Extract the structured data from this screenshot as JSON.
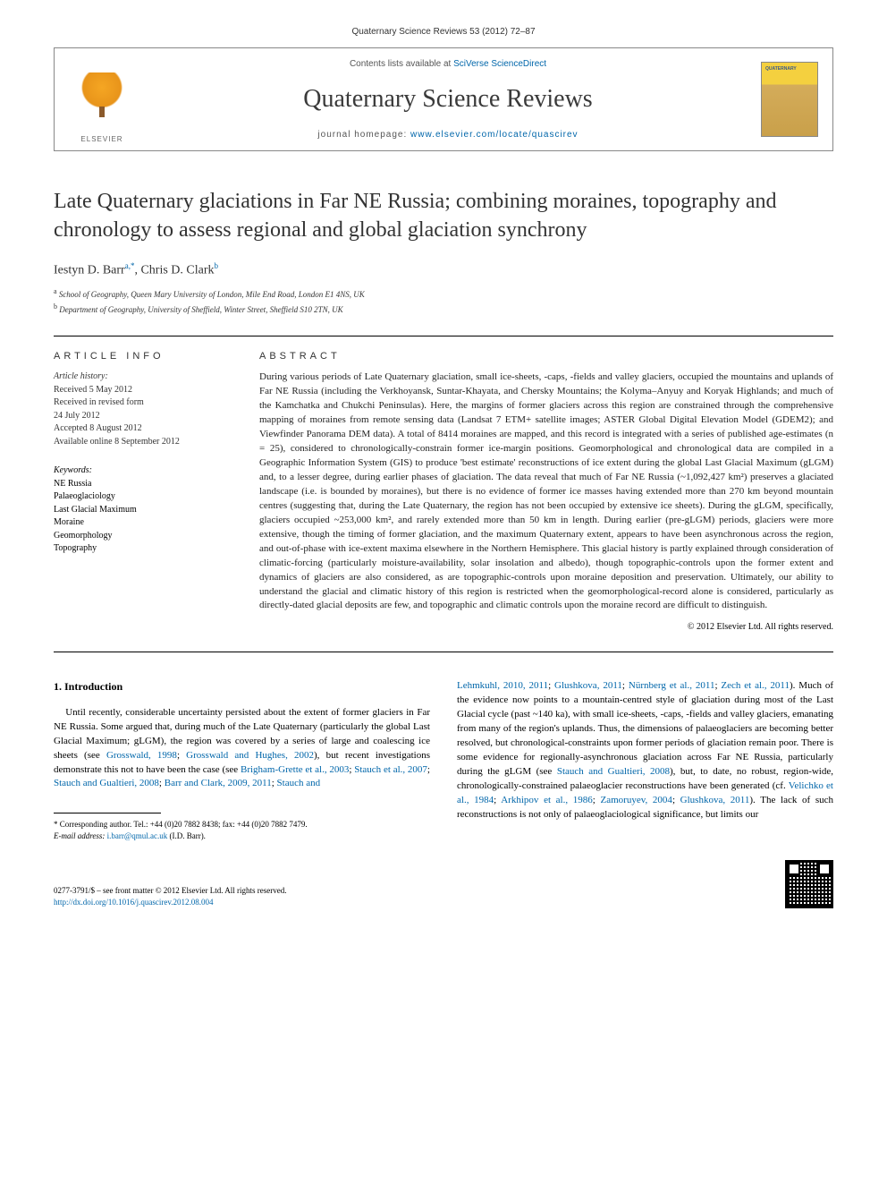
{
  "running_head": "Quaternary Science Reviews 53 (2012) 72–87",
  "masthead": {
    "publisher": "ELSEVIER",
    "contents_prefix": "Contents lists available at ",
    "contents_link": "SciVerse ScienceDirect",
    "journal_title": "Quaternary Science Reviews",
    "homepage_prefix": "journal homepage: ",
    "homepage_url": "www.elsevier.com/locate/quascirev",
    "cover_label": "QUATERNARY"
  },
  "article": {
    "title": "Late Quaternary glaciations in Far NE Russia; combining moraines, topography and chronology to assess regional and global glaciation synchrony",
    "authors_html": "Iestyn D. Barr",
    "author1": "Iestyn D. Barr",
    "author1_aff": "a,",
    "author1_star": "*",
    "author2": ", Chris D. Clark",
    "author2_aff": "b",
    "affiliations": [
      "School of Geography, Queen Mary University of London, Mile End Road, London E1 4NS, UK",
      "Department of Geography, University of Sheffield, Winter Street, Sheffield S10 2TN, UK"
    ],
    "aff_sup": [
      "a",
      "b"
    ]
  },
  "info": {
    "heading": "ARTICLE INFO",
    "history_label": "Article history:",
    "history": [
      "Received 5 May 2012",
      "Received in revised form",
      "24 July 2012",
      "Accepted 8 August 2012",
      "Available online 8 September 2012"
    ],
    "keywords_label": "Keywords:",
    "keywords": [
      "NE Russia",
      "Palaeoglaciology",
      "Last Glacial Maximum",
      "Moraine",
      "Geomorphology",
      "Topography"
    ]
  },
  "abstract": {
    "heading": "ABSTRACT",
    "text": "During various periods of Late Quaternary glaciation, small ice-sheets, -caps, -fields and valley glaciers, occupied the mountains and uplands of Far NE Russia (including the Verkhoyansk, Suntar-Khayata, and Chersky Mountains; the Kolyma–Anyuy and Koryak Highlands; and much of the Kamchatka and Chukchi Peninsulas). Here, the margins of former glaciers across this region are constrained through the comprehensive mapping of moraines from remote sensing data (Landsat 7 ETM+ satellite images; ASTER Global Digital Elevation Model (GDEM2); and Viewfinder Panorama DEM data). A total of 8414 moraines are mapped, and this record is integrated with a series of published age-estimates (n = 25), considered to chronologically-constrain former ice-margin positions. Geomorphological and chronological data are compiled in a Geographic Information System (GIS) to produce 'best estimate' reconstructions of ice extent during the global Last Glacial Maximum (gLGM) and, to a lesser degree, during earlier phases of glaciation. The data reveal that much of Far NE Russia (~1,092,427 km²) preserves a glaciated landscape (i.e. is bounded by moraines), but there is no evidence of former ice masses having extended more than 270 km beyond mountain centres (suggesting that, during the Late Quaternary, the region has not been occupied by extensive ice sheets). During the gLGM, specifically, glaciers occupied ~253,000 km², and rarely extended more than 50 km in length. During earlier (pre-gLGM) periods, glaciers were more extensive, though the timing of former glaciation, and the maximum Quaternary extent, appears to have been asynchronous across the region, and out-of-phase with ice-extent maxima elsewhere in the Northern Hemisphere. This glacial history is partly explained through consideration of climatic-forcing (particularly moisture-availability, solar insolation and albedo), though topographic-controls upon the former extent and dynamics of glaciers are also considered, as are topographic-controls upon moraine deposition and preservation. Ultimately, our ability to understand the glacial and climatic history of this region is restricted when the geomorphological-record alone is considered, particularly as directly-dated glacial deposits are few, and topographic and climatic controls upon the moraine record are difficult to distinguish.",
    "copyright": "© 2012 Elsevier Ltd. All rights reserved."
  },
  "body": {
    "section1_heading": "1. Introduction",
    "col1_para": "Until recently, considerable uncertainty persisted about the extent of former glaciers in Far NE Russia. Some argued that, during much of the Late Quaternary (particularly the global Last Glacial Maximum; gLGM), the region was covered by a series of large and coalescing ice sheets (see ",
    "col1_refs": [
      "Grosswald, 1998",
      "; ",
      "Grosswald and Hughes, 2002"
    ],
    "col1_cont": "), but recent investigations demonstrate this not to have been the case (see ",
    "col1_refs2": [
      "Brigham-Grette et al., 2003",
      "; ",
      "Stauch et al., 2007",
      "; ",
      "Stauch and Gualtieri, 2008",
      "; ",
      "Barr and Clark, 2009, 2011",
      "; ",
      "Stauch and"
    ],
    "col2_refs_start": [
      "Lehmkuhl, 2010, 2011",
      "; ",
      "Glushkova, 2011",
      "; ",
      "Nürnberg et al., 2011",
      "; ",
      "Zech et al., 2011"
    ],
    "col2_para": "). Much of the evidence now points to a mountain-centred style of glaciation during most of the Last Glacial cycle (past ~140 ka), with small ice-sheets, -caps, -fields and valley glaciers, emanating from many of the region's uplands. Thus, the dimensions of palaeoglaciers are becoming better resolved, but chronological-constraints upon former periods of glaciation remain poor. There is some evidence for regionally-asynchronous glaciation across Far NE Russia, particularly during the gLGM (see ",
    "col2_ref_mid": "Stauch and Gualtieri, 2008",
    "col2_para2": "), but, to date, no robust, region-wide, chronologically-constrained palaeoglacier reconstructions have been generated (cf. ",
    "col2_refs_end": [
      "Velichko et al., 1984",
      "; ",
      "Arkhipov et al., 1986",
      "; ",
      "Zamoruyev, 2004",
      "; ",
      "Glushkova, 2011"
    ],
    "col2_tail": "). The lack of such reconstructions is not only of palaeoglaciological significance, but limits our"
  },
  "footnote": {
    "corr": "* Corresponding author. Tel.: +44 (0)20 7882 8438; fax: +44 (0)20 7882 7479.",
    "email_label": "E-mail address: ",
    "email": "i.barr@qmul.ac.uk",
    "email_name": " (I.D. Barr)."
  },
  "footer": {
    "issn": "0277-3791/$ – see front matter © 2012 Elsevier Ltd. All rights reserved.",
    "doi": "http://dx.doi.org/10.1016/j.quascirev.2012.08.004"
  },
  "colors": {
    "link": "#0066aa",
    "text": "#222222",
    "border": "#888888"
  }
}
